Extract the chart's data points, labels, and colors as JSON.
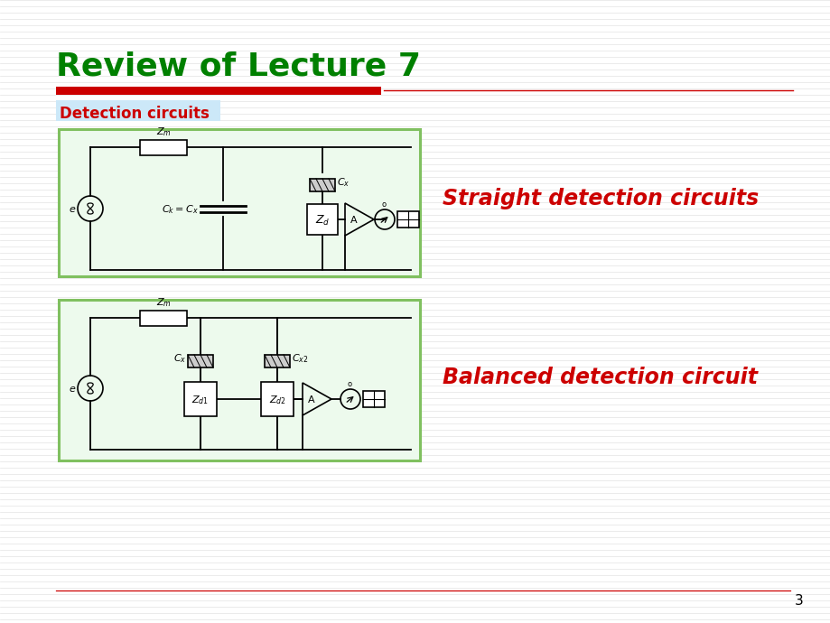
{
  "title": "Review of Lecture 7",
  "title_color": "#008000",
  "title_fontsize": 26,
  "subtitle": "Detection circuits",
  "subtitle_color": "#cc0000",
  "subtitle_bg": "#cce8f8",
  "red_bar_color": "#cc0000",
  "thin_line_color": "#cc0000",
  "circuit1_label": "Straight detection circuits",
  "circuit2_label": "Balanced detection circuit",
  "circuit_label_color": "#cc0000",
  "circuit_label_fontsize": 17,
  "circuit_bg": "#edfaed",
  "circuit_border": "#80c060",
  "page_number": "3",
  "bottom_line_color": "#cc0000",
  "white": "#ffffff",
  "black": "#000000",
  "cap_fill": "#cccccc",
  "bg_line": "#d0d0d0"
}
